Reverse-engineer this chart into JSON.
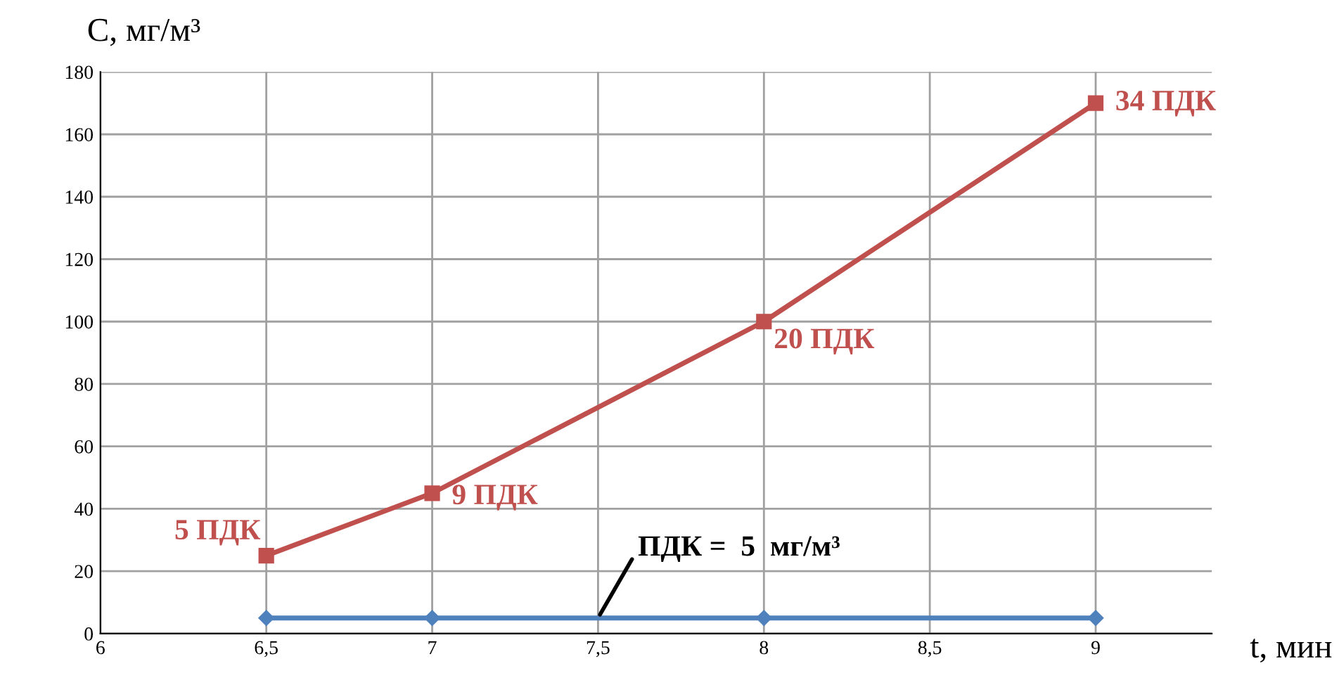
{
  "chart_data": {
    "type": "line",
    "xlabel": "t, мин",
    "ylabel": "С, мг/м³",
    "xlim": [
      6,
      9.35
    ],
    "ylim": [
      0,
      180
    ],
    "xticks": [
      6,
      {
        "value": 6.5,
        "label": "6,5"
      },
      7,
      {
        "value": 7.5,
        "label": "7,5"
      },
      8,
      {
        "value": 8.5,
        "label": "8,5"
      },
      9
    ],
    "yticks": [
      0,
      20,
      40,
      60,
      80,
      100,
      120,
      140,
      160,
      180
    ],
    "grid": true,
    "legend": false,
    "series": [
      {
        "x": [
          6.5,
          7,
          8,
          9
        ],
        "values": [
          5,
          5,
          5,
          5
        ],
        "color": "#4f81bd",
        "marker": "diamond"
      },
      {
        "x": [
          6.5,
          7,
          8,
          9
        ],
        "values": [
          25,
          45,
          100,
          170
        ],
        "color": "#c0504d",
        "marker": "square"
      }
    ],
    "annotations": [
      {
        "text": "5 ПДК",
        "x": 6.5,
        "y": 25
      },
      {
        "text": "9 ПДК",
        "x": 7,
        "y": 45
      },
      {
        "text": "20 ПДК",
        "x": 8,
        "y": 100
      },
      {
        "text": "34 ПДК",
        "x": 9,
        "y": 170
      },
      {
        "text": "ПДК =  5  мг/м³",
        "x": 7.5,
        "y": 5
      }
    ]
  }
}
